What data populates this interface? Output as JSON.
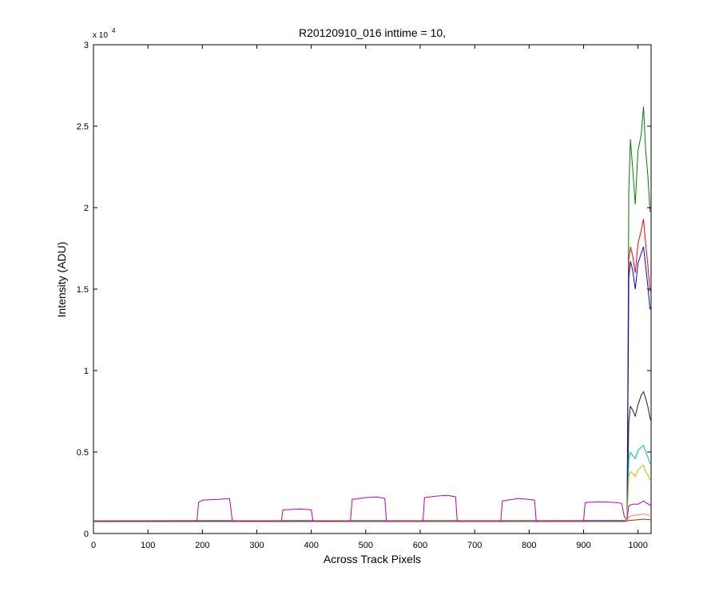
{
  "chart_data": {
    "type": "line",
    "title": "R20120910_016 inttime = 10,",
    "xlabel": "Across Track Pixels",
    "ylabel": "Intensity (ADU)",
    "y_exponent_label": "x 10",
    "y_exponent_power": "4",
    "xlim": [
      0,
      1024
    ],
    "ylim": [
      0,
      30000
    ],
    "xticks": [
      0,
      100,
      200,
      300,
      400,
      500,
      600,
      700,
      800,
      900,
      1000
    ],
    "xtick_labels": [
      "0",
      "100",
      "200",
      "300",
      "400",
      "500",
      "600",
      "700",
      "800",
      "900",
      "1000"
    ],
    "yticks": [
      0,
      5000,
      10000,
      15000,
      20000,
      25000,
      30000
    ],
    "ytick_labels": [
      "0",
      "0.5",
      "1",
      "1.5",
      "2",
      "2.5",
      "3"
    ],
    "grid": false,
    "series": [
      {
        "color": "#008000",
        "points": [
          [
            0,
            750
          ],
          [
            975,
            760
          ],
          [
            980,
            900
          ],
          [
            983,
            21000
          ],
          [
            986,
            24200
          ],
          [
            990,
            22500
          ],
          [
            995,
            20200
          ],
          [
            1000,
            23500
          ],
          [
            1006,
            24500
          ],
          [
            1010,
            26200
          ],
          [
            1014,
            23500
          ],
          [
            1018,
            22000
          ],
          [
            1022,
            19800
          ],
          [
            1024,
            19700
          ]
        ]
      },
      {
        "color": "#ff0000",
        "points": [
          [
            0,
            750
          ],
          [
            975,
            760
          ],
          [
            980,
            900
          ],
          [
            983,
            16800
          ],
          [
            986,
            17600
          ],
          [
            990,
            17100
          ],
          [
            995,
            16000
          ],
          [
            1000,
            17800
          ],
          [
            1006,
            18600
          ],
          [
            1010,
            19300
          ],
          [
            1014,
            17800
          ],
          [
            1018,
            16500
          ],
          [
            1022,
            14900
          ],
          [
            1024,
            14800
          ]
        ]
      },
      {
        "color": "#0000ff",
        "points": [
          [
            0,
            780
          ],
          [
            975,
            790
          ],
          [
            980,
            900
          ],
          [
            983,
            15700
          ],
          [
            986,
            16700
          ],
          [
            990,
            16200
          ],
          [
            995,
            15000
          ],
          [
            1000,
            16600
          ],
          [
            1006,
            17200
          ],
          [
            1010,
            17600
          ],
          [
            1014,
            16400
          ],
          [
            1018,
            15200
          ],
          [
            1022,
            13800
          ],
          [
            1024,
            13900
          ]
        ]
      },
      {
        "color": "#222222",
        "points": [
          [
            0,
            750
          ],
          [
            975,
            760
          ],
          [
            980,
            900
          ],
          [
            983,
            6800
          ],
          [
            986,
            7800
          ],
          [
            990,
            7600
          ],
          [
            995,
            7200
          ],
          [
            1000,
            7900
          ],
          [
            1006,
            8500
          ],
          [
            1010,
            8700
          ],
          [
            1014,
            8300
          ],
          [
            1018,
            7800
          ],
          [
            1022,
            7100
          ],
          [
            1024,
            6900
          ]
        ]
      },
      {
        "color": "#00bfbf",
        "points": [
          [
            0,
            740
          ],
          [
            975,
            750
          ],
          [
            980,
            900
          ],
          [
            983,
            4600
          ],
          [
            986,
            5000
          ],
          [
            990,
            4800
          ],
          [
            995,
            4600
          ],
          [
            1000,
            5100
          ],
          [
            1006,
            5300
          ],
          [
            1010,
            5400
          ],
          [
            1014,
            5000
          ],
          [
            1018,
            4700
          ],
          [
            1022,
            4300
          ],
          [
            1024,
            4200
          ]
        ]
      },
      {
        "color": "#bfbf00",
        "points": [
          [
            0,
            740
          ],
          [
            975,
            750
          ],
          [
            980,
            900
          ],
          [
            983,
            3500
          ],
          [
            986,
            3800
          ],
          [
            990,
            3700
          ],
          [
            995,
            3500
          ],
          [
            1000,
            3900
          ],
          [
            1006,
            4100
          ],
          [
            1010,
            4200
          ],
          [
            1014,
            3800
          ],
          [
            1018,
            3600
          ],
          [
            1022,
            3300
          ],
          [
            1024,
            3200
          ]
        ]
      },
      {
        "color": "#bf00bf",
        "points": [
          [
            0,
            760
          ],
          [
            190,
            760
          ],
          [
            193,
            1900
          ],
          [
            200,
            2050
          ],
          [
            230,
            2100
          ],
          [
            250,
            2150
          ],
          [
            255,
            780
          ],
          [
            345,
            780
          ],
          [
            348,
            1450
          ],
          [
            380,
            1500
          ],
          [
            400,
            1450
          ],
          [
            403,
            780
          ],
          [
            472,
            780
          ],
          [
            475,
            2100
          ],
          [
            500,
            2200
          ],
          [
            520,
            2250
          ],
          [
            535,
            2150
          ],
          [
            538,
            780
          ],
          [
            605,
            780
          ],
          [
            608,
            2200
          ],
          [
            630,
            2300
          ],
          [
            650,
            2350
          ],
          [
            665,
            2250
          ],
          [
            668,
            780
          ],
          [
            748,
            780
          ],
          [
            751,
            2000
          ],
          [
            780,
            2150
          ],
          [
            800,
            2100
          ],
          [
            810,
            2050
          ],
          [
            813,
            780
          ],
          [
            900,
            780
          ],
          [
            903,
            1900
          ],
          [
            930,
            1950
          ],
          [
            960,
            1900
          ],
          [
            970,
            1850
          ],
          [
            975,
            1000
          ],
          [
            980,
            900
          ],
          [
            983,
            1700
          ],
          [
            990,
            1800
          ],
          [
            1000,
            1800
          ],
          [
            1006,
            1900
          ],
          [
            1010,
            2000
          ],
          [
            1014,
            1900
          ],
          [
            1024,
            1700
          ]
        ]
      },
      {
        "color": "#ff8080",
        "points": [
          [
            0,
            740
          ],
          [
            975,
            750
          ],
          [
            980,
            800
          ],
          [
            983,
            1050
          ],
          [
            1000,
            1150
          ],
          [
            1010,
            1200
          ],
          [
            1024,
            1100
          ]
        ]
      },
      {
        "color": "#804000",
        "points": [
          [
            0,
            730
          ],
          [
            975,
            740
          ],
          [
            980,
            760
          ],
          [
            983,
            800
          ],
          [
            1000,
            850
          ],
          [
            1010,
            880
          ],
          [
            1024,
            840
          ]
        ]
      }
    ]
  }
}
